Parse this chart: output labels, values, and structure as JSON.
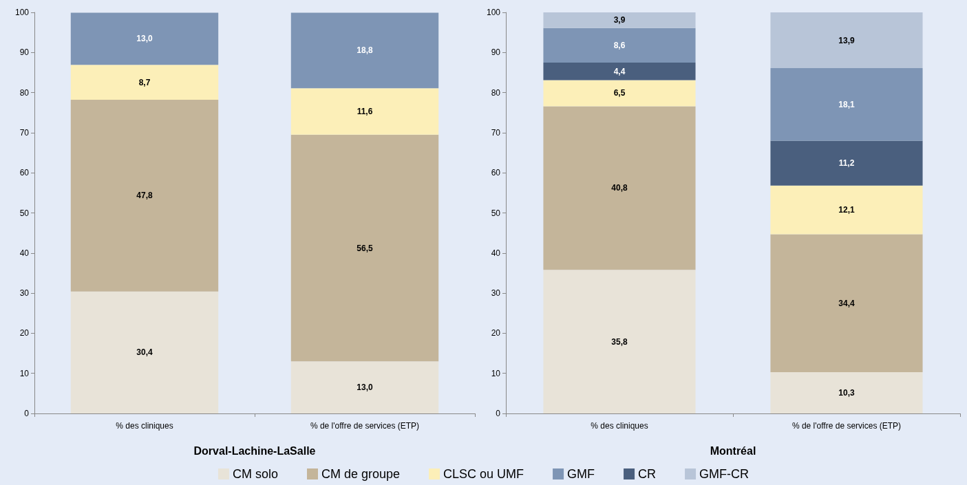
{
  "chart_data": [
    {
      "type": "bar",
      "stacked": true,
      "xlabel": "Dorval-Lachine-LaSalle",
      "categories": [
        "% des cliniques",
        "% de l'offre de services (ETP)"
      ],
      "ylim": [
        0,
        100
      ],
      "yticks": [
        0,
        10,
        20,
        30,
        40,
        50,
        60,
        70,
        80,
        90,
        100
      ],
      "grid": false,
      "legend": "bottom",
      "series": [
        {
          "name": "CM solo",
          "color": "#e8e3d8",
          "values": [
            30.4,
            13.0
          ],
          "value_labels": [
            "30,4",
            "13,0"
          ]
        },
        {
          "name": "CM de groupe",
          "color": "#c4b59a",
          "values": [
            47.8,
            56.5
          ],
          "value_labels": [
            "47,8",
            "56,5"
          ]
        },
        {
          "name": "CLSC ou UMF",
          "color": "#fcefb8",
          "values": [
            8.7,
            11.6
          ],
          "value_labels": [
            "8,7",
            "11,6"
          ]
        },
        {
          "name": "GMF",
          "color": "#7e95b5",
          "values": [
            13.0,
            18.8
          ],
          "value_labels": [
            "13,0",
            "18,8"
          ]
        }
      ]
    },
    {
      "type": "bar",
      "stacked": true,
      "xlabel": "Montréal",
      "categories": [
        "% des cliniques",
        "% de l'offre de services (ETP)"
      ],
      "ylim": [
        0,
        100
      ],
      "yticks": [
        0,
        10,
        20,
        30,
        40,
        50,
        60,
        70,
        80,
        90,
        100
      ],
      "grid": false,
      "legend": "bottom",
      "series": [
        {
          "name": "CM solo",
          "color": "#e8e3d8",
          "values": [
            35.8,
            10.3
          ],
          "value_labels": [
            "35,8",
            "10,3"
          ]
        },
        {
          "name": "CM de groupe",
          "color": "#c4b59a",
          "values": [
            40.8,
            34.4
          ],
          "value_labels": [
            "40,8",
            "34,4"
          ]
        },
        {
          "name": "CLSC ou UMF",
          "color": "#fcefb8",
          "values": [
            6.5,
            12.1
          ],
          "value_labels": [
            "6,5",
            "12,1"
          ]
        },
        {
          "name": "CR",
          "color": "#4a5f7e",
          "values": [
            4.4,
            11.2
          ],
          "value_labels": [
            "4,4",
            "11,2"
          ]
        },
        {
          "name": "GMF",
          "color": "#7e95b5",
          "values": [
            8.6,
            18.1
          ],
          "value_labels": [
            "8,6",
            "18,1"
          ]
        },
        {
          "name": "GMF-CR",
          "color": "#b8c5d8",
          "values": [
            3.9,
            13.9
          ],
          "value_labels": [
            "3,9",
            "13,9"
          ]
        }
      ]
    }
  ]
}
